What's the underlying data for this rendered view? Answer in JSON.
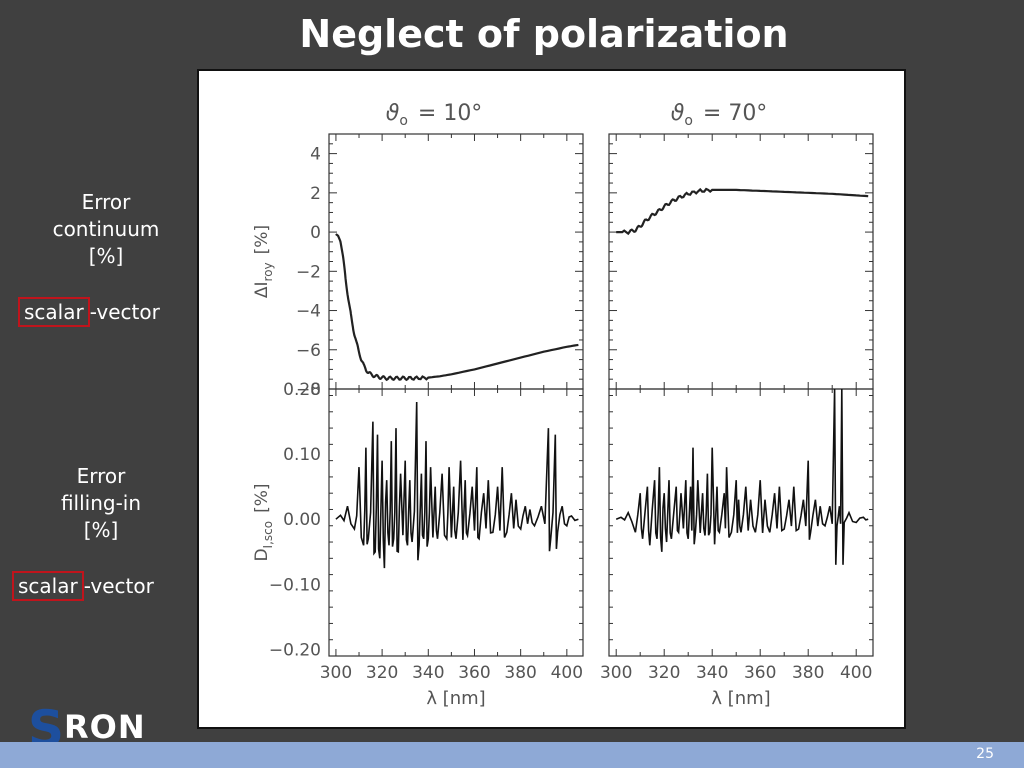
{
  "slide": {
    "title": "Neglect of polarization",
    "page_number": "25",
    "logo": {
      "s": "S",
      "rest": "RON"
    }
  },
  "left_labels": {
    "continuum": {
      "line1": "Error",
      "line2": "continuum",
      "line3": "[%]",
      "scalar": "scalar",
      "vector": "-vector"
    },
    "filling": {
      "line1": "Error",
      "line2": "filling-in",
      "line3": "[%]",
      "scalar": "scalar",
      "vector": "-vector"
    }
  },
  "chart_data": [
    {
      "type": "line",
      "panel": "top-left",
      "title": "ϑ",
      "title_sub": "o",
      "title_value": "= 10°",
      "ylabel": "ΔI",
      "ylabel_sub": "roy",
      "ylabel_unit": "[%]",
      "xlim": [
        297,
        407
      ],
      "ylim": [
        -8,
        5
      ],
      "yticks": [
        "4",
        "2",
        "0",
        "−2",
        "−4",
        "−6",
        "−8"
      ],
      "ytick_values": [
        4,
        2,
        0,
        -2,
        -4,
        -6,
        -8
      ],
      "x": [
        300,
        301,
        302,
        303,
        304,
        305,
        306,
        307,
        308,
        309,
        310,
        311,
        312,
        313,
        314,
        315,
        316,
        318,
        320,
        322,
        325,
        328,
        331,
        335,
        340,
        345,
        350,
        360,
        370,
        380,
        390,
        400,
        405
      ],
      "values": [
        -0.1,
        -0.2,
        -0.5,
        -1.2,
        -2.2,
        -3.1,
        -3.9,
        -4.6,
        -5.2,
        -5.7,
        -6.1,
        -6.5,
        -6.8,
        -7.0,
        -7.15,
        -7.25,
        -7.3,
        -7.38,
        -7.42,
        -7.45,
        -7.45,
        -7.45,
        -7.45,
        -7.45,
        -7.42,
        -7.35,
        -7.25,
        -7.0,
        -6.7,
        -6.4,
        -6.1,
        -5.85,
        -5.75
      ]
    },
    {
      "type": "line",
      "panel": "top-right",
      "title": "ϑ",
      "title_sub": "o",
      "title_value": "= 70°",
      "xlim": [
        297,
        407
      ],
      "ylim": [
        -8,
        5
      ],
      "x": [
        300,
        305,
        308,
        310,
        312,
        315,
        318,
        320,
        323,
        326,
        330,
        335,
        340,
        350,
        360,
        370,
        380,
        390,
        400,
        405
      ],
      "values": [
        0.0,
        0.0,
        0.1,
        0.3,
        0.55,
        0.85,
        1.1,
        1.3,
        1.55,
        1.75,
        1.95,
        2.1,
        2.15,
        2.15,
        2.1,
        2.05,
        2.0,
        1.95,
        1.87,
        1.83
      ]
    },
    {
      "type": "line",
      "panel": "bottom-left",
      "ylabel": "D",
      "ylabel_sub": "I,sco",
      "ylabel_unit": "[%]",
      "xlabel": "λ [nm]",
      "xlim": [
        297,
        407
      ],
      "ylim": [
        -0.21,
        0.2
      ],
      "yticks": [
        "0.20",
        "0.10",
        "0.00",
        "−0.10",
        "−0.20"
      ],
      "ytick_values": [
        0.2,
        0.1,
        0.0,
        -0.1,
        -0.2
      ],
      "xticks": [
        "300",
        "320",
        "340",
        "360",
        "380",
        "400"
      ],
      "xtick_values": [
        300,
        320,
        340,
        360,
        380,
        400
      ],
      "spikes": [
        [
          302,
          0.006
        ],
        [
          305,
          0.02
        ],
        [
          308,
          -0.015
        ],
        [
          310,
          0.08
        ],
        [
          312,
          -0.04
        ],
        [
          313,
          0.11
        ],
        [
          314,
          -0.03
        ],
        [
          316,
          0.15
        ],
        [
          317,
          -0.05
        ],
        [
          318,
          0.13
        ],
        [
          319,
          -0.06
        ],
        [
          320,
          0.09
        ],
        [
          321,
          -0.075
        ],
        [
          322,
          0.06
        ],
        [
          323,
          -0.04
        ],
        [
          324,
          0.12
        ],
        [
          325,
          -0.03
        ],
        [
          326,
          0.14
        ],
        [
          327,
          -0.05
        ],
        [
          328,
          0.07
        ],
        [
          330,
          0.09
        ],
        [
          331,
          -0.04
        ],
        [
          332,
          0.06
        ],
        [
          333,
          -0.035
        ],
        [
          335,
          0.18
        ],
        [
          336,
          -0.04
        ],
        [
          337,
          0.07
        ],
        [
          338,
          -0.03
        ],
        [
          339,
          0.12
        ],
        [
          340,
          -0.03
        ],
        [
          341,
          0.08
        ],
        [
          343,
          0.05
        ],
        [
          344,
          -0.03
        ],
        [
          346,
          0.07
        ],
        [
          348,
          -0.03
        ],
        [
          349,
          0.08
        ],
        [
          351,
          0.05
        ],
        [
          352,
          -0.03
        ],
        [
          354,
          0.09
        ],
        [
          356,
          0.06
        ],
        [
          357,
          -0.025
        ],
        [
          359,
          0.05
        ],
        [
          361,
          0.08
        ],
        [
          362,
          -0.03
        ],
        [
          364,
          0.04
        ],
        [
          366,
          0.06
        ],
        [
          368,
          -0.02
        ],
        [
          370,
          0.05
        ],
        [
          372,
          0.08
        ],
        [
          374,
          -0.02
        ],
        [
          376,
          0.04
        ],
        [
          378,
          0.03
        ],
        [
          380,
          -0.015
        ],
        [
          382,
          0.02
        ],
        [
          384,
          0.015
        ],
        [
          386,
          -0.01
        ],
        [
          389,
          0.02
        ],
        [
          392,
          0.14
        ],
        [
          393,
          -0.03
        ],
        [
          395,
          0.13
        ],
        [
          396,
          -0.02
        ],
        [
          398,
          0.02
        ],
        [
          400,
          -0.01
        ],
        [
          402,
          0.005
        ],
        [
          405,
          0.0
        ]
      ]
    },
    {
      "type": "line",
      "panel": "bottom-right",
      "xlabel": "λ [nm]",
      "xlim": [
        297,
        407
      ],
      "ylim": [
        -0.21,
        0.2
      ],
      "xticks": [
        "300",
        "320",
        "340",
        "360",
        "380",
        "400"
      ],
      "xtick_values": [
        300,
        320,
        340,
        360,
        380,
        400
      ],
      "spikes": [
        [
          302,
          0.003
        ],
        [
          305,
          0.01
        ],
        [
          308,
          -0.02
        ],
        [
          310,
          0.04
        ],
        [
          311,
          -0.03
        ],
        [
          313,
          0.05
        ],
        [
          314,
          -0.04
        ],
        [
          316,
          0.06
        ],
        [
          317,
          -0.03
        ],
        [
          318,
          0.08
        ],
        [
          319,
          -0.05
        ],
        [
          320,
          0.04
        ],
        [
          321,
          -0.035
        ],
        [
          322,
          0.06
        ],
        [
          323,
          -0.03
        ],
        [
          325,
          0.05
        ],
        [
          326,
          -0.02
        ],
        [
          327,
          0.04
        ],
        [
          329,
          0.06
        ],
        [
          330,
          -0.03
        ],
        [
          331,
          0.05
        ],
        [
          332,
          0.11
        ],
        [
          333,
          -0.02
        ],
        [
          334,
          0.06
        ],
        [
          336,
          0.04
        ],
        [
          337,
          -0.025
        ],
        [
          338,
          0.07
        ],
        [
          339,
          -0.02
        ],
        [
          340,
          0.11
        ],
        [
          342,
          0.05
        ],
        [
          343,
          -0.02
        ],
        [
          345,
          0.04
        ],
        [
          346,
          0.08
        ],
        [
          348,
          -0.02
        ],
        [
          350,
          0.06
        ],
        [
          351,
          0.03
        ],
        [
          352,
          -0.02
        ],
        [
          354,
          0.05
        ],
        [
          356,
          0.03
        ],
        [
          358,
          -0.02
        ],
        [
          360,
          0.06
        ],
        [
          362,
          0.03
        ],
        [
          364,
          -0.02
        ],
        [
          366,
          0.04
        ],
        [
          368,
          0.05
        ],
        [
          370,
          -0.015
        ],
        [
          372,
          0.03
        ],
        [
          374,
          0.05
        ],
        [
          376,
          -0.015
        ],
        [
          378,
          0.03
        ],
        [
          380,
          0.09
        ],
        [
          381,
          -0.02
        ],
        [
          383,
          0.03
        ],
        [
          385,
          0.02
        ],
        [
          387,
          -0.01
        ],
        [
          389,
          0.02
        ],
        [
          391,
          0.2
        ],
        [
          392,
          -0.01
        ],
        [
          393,
          0.02
        ],
        [
          394,
          0.2
        ],
        [
          395,
          -0.005
        ],
        [
          397,
          0.01
        ],
        [
          400,
          -0.005
        ],
        [
          403,
          0.003
        ],
        [
          405,
          0.0
        ]
      ]
    }
  ]
}
